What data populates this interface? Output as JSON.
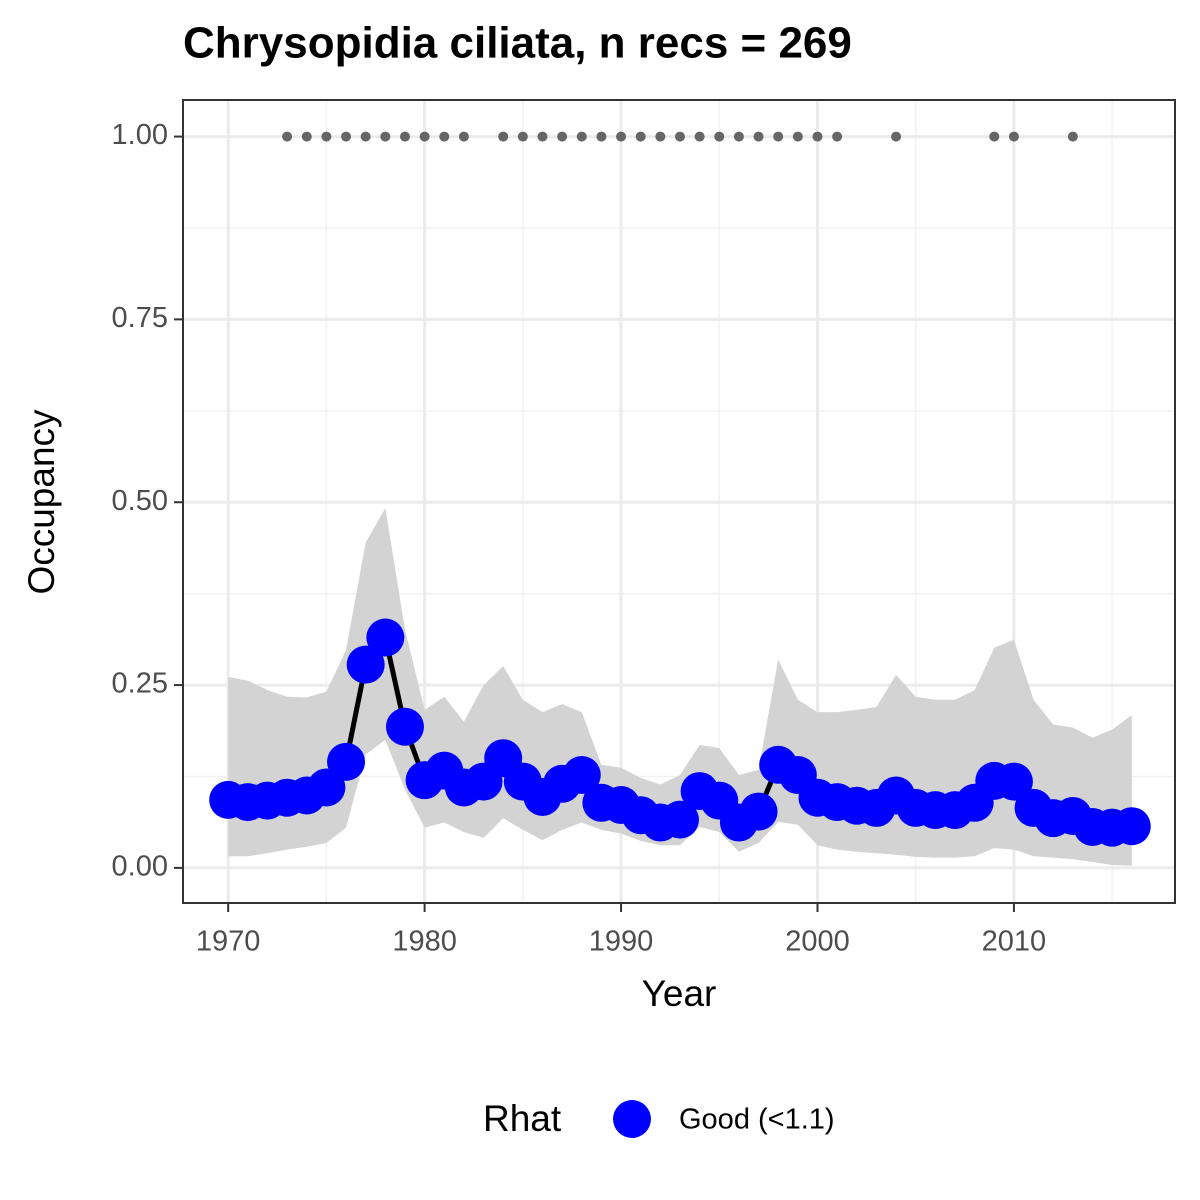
{
  "chart_data": {
    "type": "line",
    "title": "Chrysopidia ciliata, n recs = 269",
    "x_label": "Year",
    "y_label": "Occupancy",
    "x": [
      1970,
      1971,
      1972,
      1973,
      1974,
      1975,
      1976,
      1977,
      1978,
      1979,
      1980,
      1981,
      1982,
      1983,
      1984,
      1985,
      1986,
      1987,
      1988,
      1989,
      1990,
      1991,
      1992,
      1993,
      1994,
      1995,
      1996,
      1997,
      1998,
      1999,
      2000,
      2001,
      2002,
      2003,
      2004,
      2005,
      2006,
      2007,
      2008,
      2009,
      2010,
      2011,
      2012,
      2013,
      2014,
      2015,
      2016
    ],
    "series": [
      {
        "name": "Good (<1.1)",
        "color": "#0000ff",
        "line_color": "#000000",
        "values": [
          0.093,
          0.09,
          0.092,
          0.096,
          0.099,
          0.11,
          0.145,
          0.278,
          0.315,
          0.193,
          0.12,
          0.133,
          0.11,
          0.118,
          0.15,
          0.118,
          0.097,
          0.115,
          0.127,
          0.089,
          0.086,
          0.072,
          0.062,
          0.066,
          0.105,
          0.092,
          0.062,
          0.077,
          0.141,
          0.127,
          0.096,
          0.09,
          0.085,
          0.082,
          0.099,
          0.082,
          0.079,
          0.079,
          0.089,
          0.119,
          0.118,
          0.082,
          0.068,
          0.071,
          0.056,
          0.055,
          0.057
        ]
      }
    ],
    "band": {
      "color": "#d3d3d3",
      "upper": [
        0.261,
        0.256,
        0.243,
        0.234,
        0.233,
        0.241,
        0.298,
        0.445,
        0.492,
        0.326,
        0.216,
        0.234,
        0.2,
        0.25,
        0.276,
        0.23,
        0.213,
        0.224,
        0.213,
        0.141,
        0.137,
        0.123,
        0.114,
        0.127,
        0.168,
        0.164,
        0.127,
        0.134,
        0.285,
        0.23,
        0.213,
        0.213,
        0.216,
        0.22,
        0.264,
        0.234,
        0.23,
        0.23,
        0.243,
        0.301,
        0.312,
        0.23,
        0.196,
        0.192,
        0.178,
        0.189,
        0.209
      ],
      "lower": [
        0.016,
        0.016,
        0.02,
        0.025,
        0.029,
        0.034,
        0.055,
        0.155,
        0.175,
        0.107,
        0.055,
        0.062,
        0.049,
        0.041,
        0.068,
        0.052,
        0.038,
        0.052,
        0.062,
        0.052,
        0.047,
        0.037,
        0.031,
        0.031,
        0.056,
        0.049,
        0.022,
        0.034,
        0.063,
        0.059,
        0.031,
        0.025,
        0.022,
        0.02,
        0.018,
        0.015,
        0.014,
        0.014,
        0.016,
        0.027,
        0.025,
        0.016,
        0.014,
        0.012,
        0.008,
        0.004,
        0.003
      ]
    },
    "records": {
      "color": "#666666",
      "x": [
        1973,
        1974,
        1975,
        1976,
        1977,
        1978,
        1979,
        1980,
        1981,
        1982,
        1984,
        1985,
        1986,
        1987,
        1988,
        1989,
        1990,
        1991,
        1992,
        1993,
        1994,
        1995,
        1996,
        1997,
        1998,
        1999,
        2000,
        2001,
        2004,
        2009,
        2010,
        2013
      ],
      "values": [
        1,
        1,
        1,
        1,
        1,
        1,
        1,
        1,
        1,
        1,
        1,
        1,
        1,
        1,
        1,
        1,
        1,
        1,
        1,
        1,
        1,
        1,
        1,
        1,
        1,
        1,
        1,
        1,
        1,
        1,
        1,
        1
      ]
    },
    "xlim": [
      1967.7,
      2018.2
    ],
    "xticks": [
      1970,
      1980,
      1990,
      2000,
      2010
    ],
    "ylim": [
      -0.048,
      1.05
    ],
    "yticks": [
      {
        "value": 0,
        "label": "0.00"
      },
      {
        "value": 0.25,
        "label": "0.25"
      },
      {
        "value": 0.5,
        "label": "0.50"
      },
      {
        "value": 0.75,
        "label": "0.75"
      },
      {
        "value": 1,
        "label": "1.00"
      }
    ],
    "grid": true,
    "legend_title": "Rhat",
    "legend_position": "bottom"
  }
}
